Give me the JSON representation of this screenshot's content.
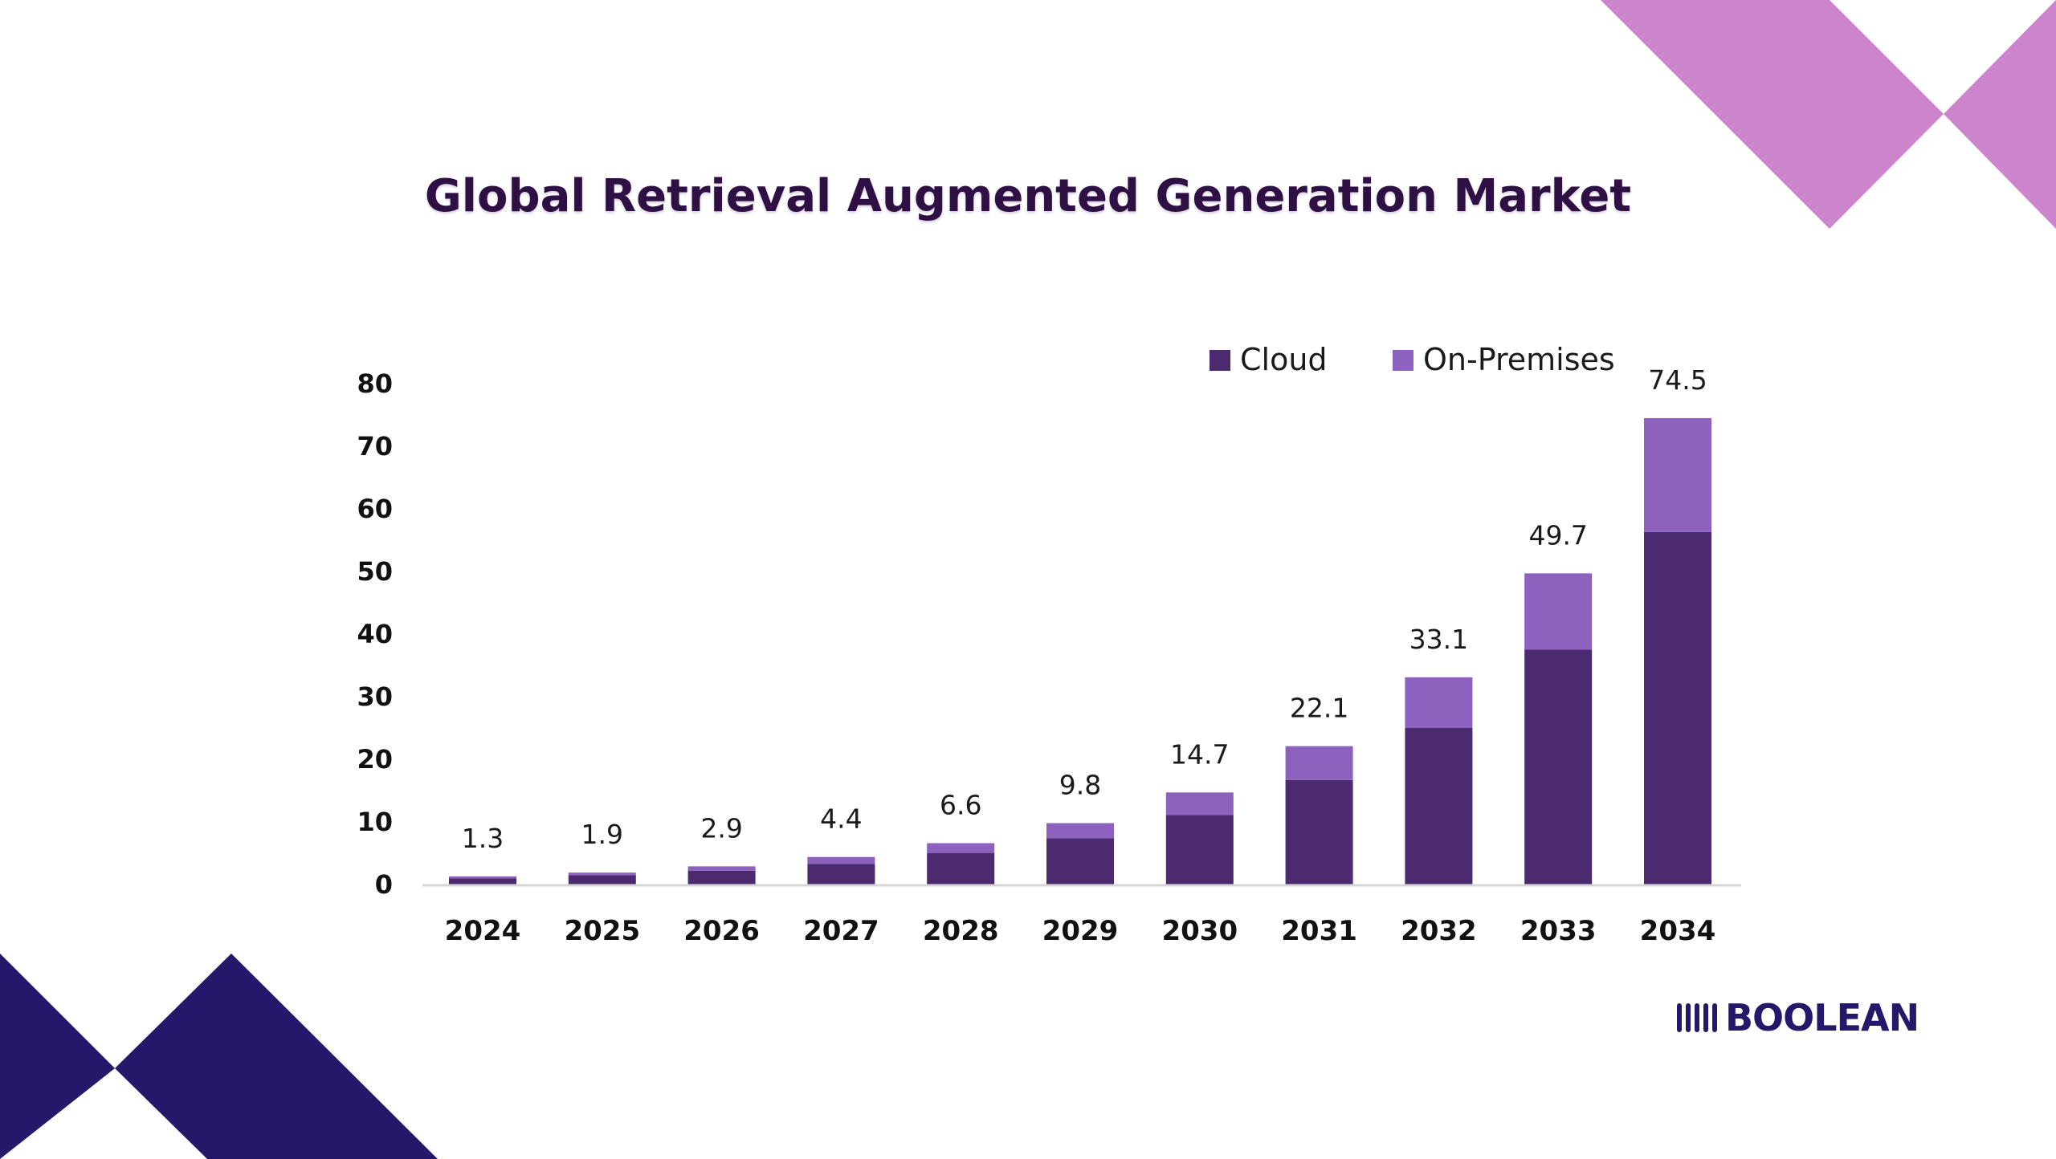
{
  "title": "Global Retrieval Augmented Generation Market",
  "brand": {
    "name": "BOOLEAN",
    "color": "#25186a"
  },
  "colors": {
    "cloud": "#4b2a6f",
    "on_premises": "#8c62be",
    "decor_pink": "#cc84cc",
    "decor_navy": "#25186a"
  },
  "chart_data": {
    "type": "bar",
    "stacked": true,
    "title": "Global Retrieval Augmented Generation Market",
    "xlabel": "",
    "ylabel": "",
    "ylim": [
      0,
      80
    ],
    "yticks": [
      0,
      10,
      20,
      30,
      40,
      50,
      60,
      70,
      80
    ],
    "grid": false,
    "legend_position": "top-right",
    "categories": [
      "2024",
      "2025",
      "2026",
      "2027",
      "2028",
      "2029",
      "2030",
      "2031",
      "2032",
      "2033",
      "2034"
    ],
    "series": [
      {
        "name": "Cloud",
        "values": [
          1.0,
          1.5,
          2.2,
          3.3,
          5.0,
          7.4,
          11.1,
          16.7,
          25.0,
          37.5,
          56.3
        ]
      },
      {
        "name": "On-Premises",
        "values": [
          0.3,
          0.4,
          0.7,
          1.1,
          1.6,
          2.4,
          3.6,
          5.4,
          8.1,
          12.2,
          18.2
        ]
      }
    ],
    "totals": [
      "1.3",
      "1.9",
      "2.9",
      "4.4",
      "6.6",
      "9.8",
      "14.7",
      "22.1",
      "33.1",
      "49.7",
      "74.5"
    ]
  }
}
